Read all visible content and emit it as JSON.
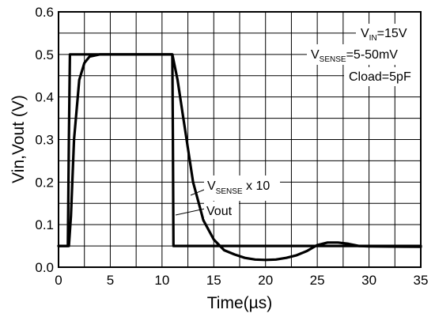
{
  "chart_data": {
    "type": "line",
    "title": "",
    "xlabel": "Time(µs)",
    "ylabel": "Vin,Vout (V)",
    "xlim": [
      0,
      35
    ],
    "ylim": [
      0,
      0.6
    ],
    "xticks": [
      0,
      5,
      10,
      15,
      20,
      25,
      30,
      35
    ],
    "yticks": [
      0.0,
      0.1,
      0.2,
      0.3,
      0.4,
      0.5,
      0.6
    ],
    "ytick_labels": [
      "0.0",
      "0.1",
      "0.2",
      "0.3",
      "0.4",
      "0.5",
      "0.6"
    ],
    "grid": true,
    "conditions": [
      {
        "main": "V",
        "sub": "IN",
        "rest": "=15V"
      },
      {
        "main": "V",
        "sub": "SENSE",
        "rest": "=5-50mV"
      },
      {
        "main": "Cload=5pF",
        "sub": "",
        "rest": ""
      }
    ],
    "series": [
      {
        "label_main": "V",
        "label_sub": "SENSE",
        "label_rest": " x 10",
        "x": [
          0,
          0.9,
          1.0,
          1.1,
          11.0,
          11.05,
          11.1,
          35
        ],
        "y": [
          0.05,
          0.05,
          0.3,
          0.5,
          0.5,
          0.3,
          0.05,
          0.05
        ]
      },
      {
        "label_main": "Vout",
        "label_sub": "",
        "label_rest": "",
        "x": [
          0,
          1.0,
          1.2,
          1.5,
          2.0,
          2.5,
          3.0,
          4.0,
          11.0,
          11.5,
          12.0,
          13.0,
          14.0,
          15.0,
          16.0,
          17.0,
          18.0,
          19.0,
          20.0,
          21.0,
          22.0,
          23.0,
          24.0,
          25.0,
          26.0,
          27.0,
          28.0,
          29.0,
          30.0,
          35.0
        ],
        "y": [
          0.05,
          0.05,
          0.12,
          0.3,
          0.44,
          0.48,
          0.495,
          0.5,
          0.5,
          0.44,
          0.36,
          0.2,
          0.11,
          0.065,
          0.04,
          0.03,
          0.022,
          0.018,
          0.017,
          0.018,
          0.022,
          0.028,
          0.038,
          0.052,
          0.058,
          0.058,
          0.055,
          0.05,
          0.049,
          0.048
        ]
      }
    ]
  }
}
